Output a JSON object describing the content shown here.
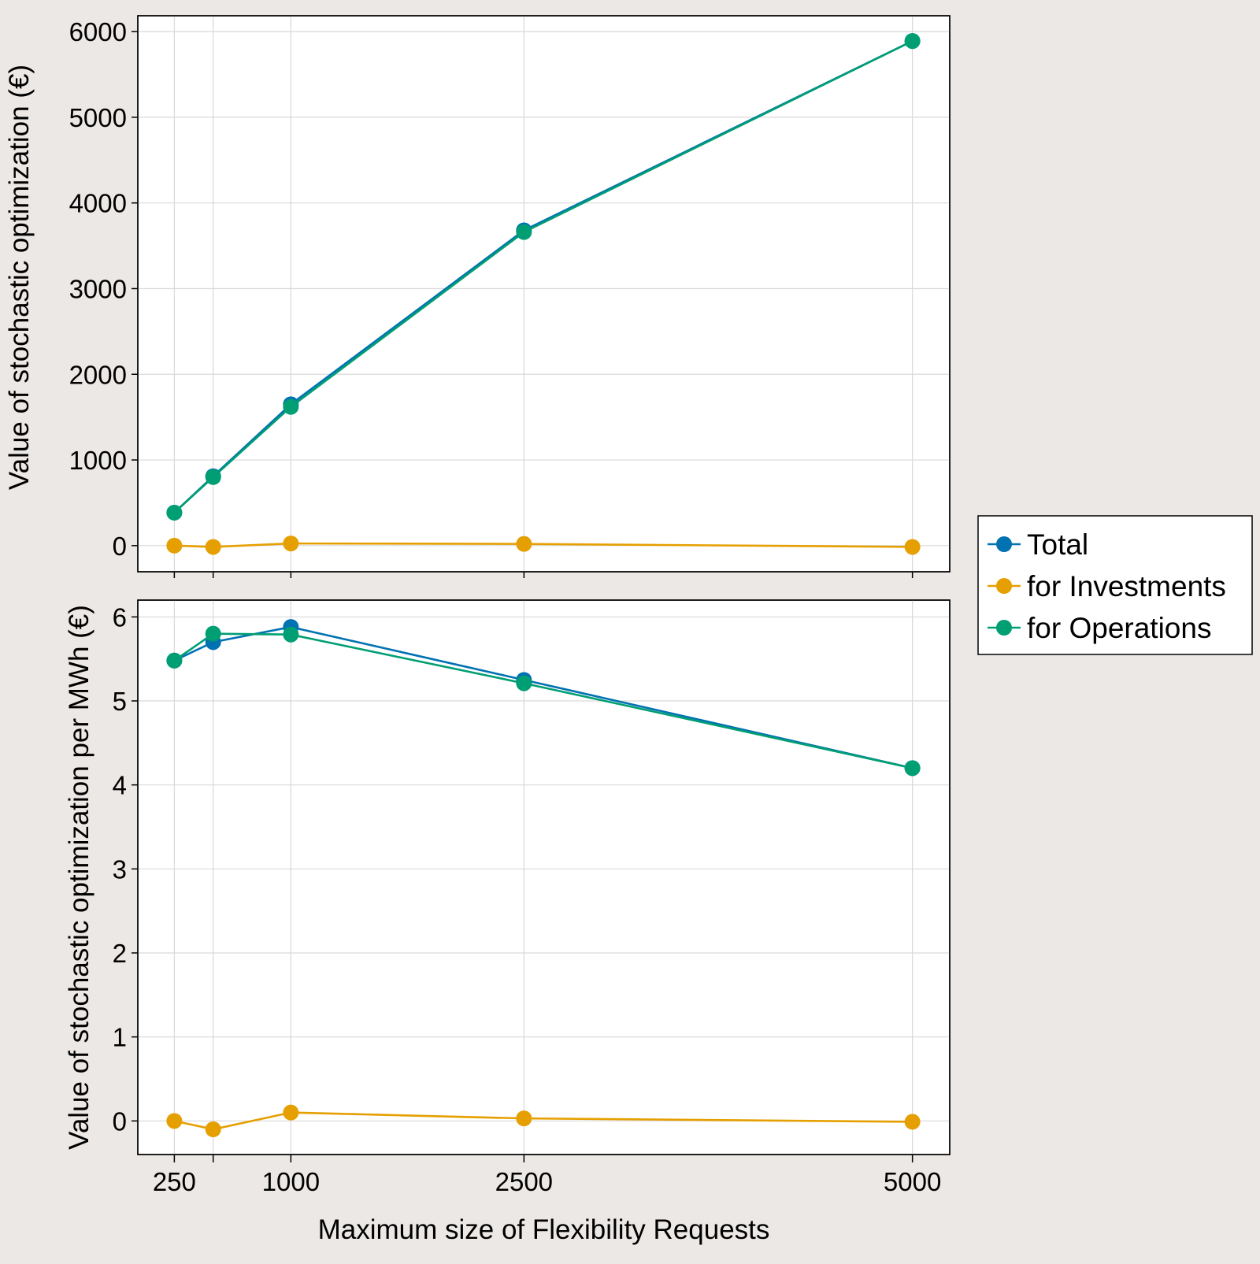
{
  "chart_data": [
    {
      "type": "line",
      "title": "",
      "xlabel": "",
      "ylabel": "Value of stochastic optimization (€)",
      "x": [
        250,
        500,
        1000,
        2500,
        5000
      ],
      "xlim": [
        15,
        5240
      ],
      "ylim": [
        -305,
        6185
      ],
      "yticks": [
        0,
        1000,
        2000,
        3000,
        4000,
        5000,
        6000
      ],
      "grid": true,
      "series": [
        {
          "name": "Total",
          "color": "#0072b2",
          "values": [
            385,
            810,
            1650,
            3680,
            5890
          ]
        },
        {
          "name": "for Investments",
          "color": "#e69f00",
          "values": [
            0,
            -15,
            25,
            20,
            -15
          ]
        },
        {
          "name": "for Operations",
          "color": "#009e73",
          "values": [
            385,
            800,
            1620,
            3660,
            5890
          ]
        }
      ]
    },
    {
      "type": "line",
      "title": "",
      "xlabel": "Maximum size of Flexibility Requests",
      "ylabel": "Value of stochastic optimization per MWh (€)",
      "x": [
        250,
        500,
        1000,
        2500,
        5000
      ],
      "xlim": [
        15,
        5240
      ],
      "ylim": [
        -0.4,
        6.2
      ],
      "yticks": [
        0,
        1,
        2,
        3,
        4,
        5,
        6
      ],
      "xticks": [
        250,
        500,
        1000,
        2500,
        5000
      ],
      "xtick_labels": [
        "250",
        "",
        "1000",
        "2500",
        "5000"
      ],
      "grid": true,
      "series": [
        {
          "name": "Total",
          "color": "#0072b2",
          "values": [
            5.48,
            5.7,
            5.88,
            5.25,
            4.2
          ]
        },
        {
          "name": "for Investments",
          "color": "#e69f00",
          "values": [
            0.0,
            -0.1,
            0.1,
            0.03,
            -0.01
          ]
        },
        {
          "name": "for Operations",
          "color": "#009e73",
          "values": [
            5.48,
            5.8,
            5.79,
            5.21,
            4.2
          ]
        }
      ]
    }
  ],
  "legend": {
    "placement": "right",
    "items": [
      {
        "label": "Total",
        "color": "#0072b2"
      },
      {
        "label": "for Investments",
        "color": "#e69f00"
      },
      {
        "label": "for Operations",
        "color": "#009e73"
      }
    ]
  }
}
